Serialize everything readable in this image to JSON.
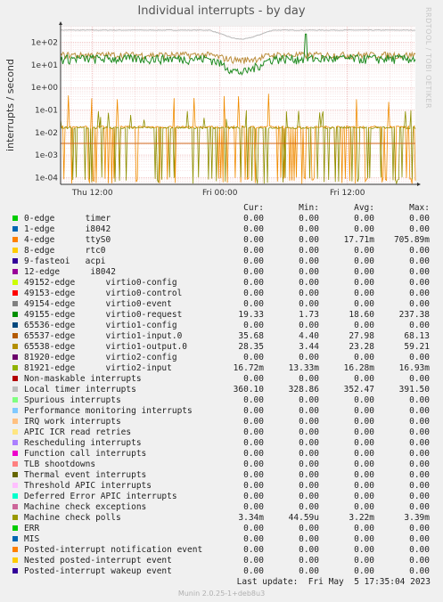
{
  "chart_data": {
    "type": "line",
    "title": "Individual interrupts - by day",
    "ylabel": "interrupts / second",
    "xlabel": "",
    "y_scale": "log",
    "ylim": [
      5e-05,
      500
    ],
    "ytick_labels": [
      "1e+02",
      "1e+01",
      "1e+00",
      "1e-01",
      "1e-02",
      "1e-03",
      "1e-04"
    ],
    "ytick_values": [
      100,
      10,
      1,
      0.1,
      0.01,
      0.001,
      0.0001
    ],
    "xtick_labels": [
      "Thu 12:00",
      "Fri 00:00",
      "Fri 12:00"
    ],
    "xtick_hours": [
      12,
      24,
      36
    ],
    "x_range_hours": [
      9,
      42.4
    ],
    "grid": true,
    "series": [
      {
        "name": "Local timer interrupts",
        "color": "#b8b8b8",
        "baseline": 352,
        "dip": 0.4
      },
      {
        "name": "49155-edge virtio0-request",
        "color": "#228b22",
        "baseline": 19.3,
        "dip": 0.25
      },
      {
        "name": "65537-edge virtio1-input.0",
        "color": "#bc8f3f",
        "baseline": 28,
        "dip": 0.6
      },
      {
        "name": "81921-edge virtio2-input",
        "color": "#8f8f00",
        "baseline": 0.0163,
        "dip": 1
      },
      {
        "name": "4-edge ttyS0",
        "color": "#f08c00",
        "baseline": 0.0177,
        "dip": 1
      },
      {
        "name": "Machine check polls",
        "color": "#d2691e",
        "baseline": 0.0033,
        "dip": 1
      }
    ]
  },
  "watermark": "RRDTOOL / TOBI OETIKER",
  "legend_headers": {
    "cur": "Cur:",
    "min": "Min:",
    "avg": "Avg:",
    "max": "Max:"
  },
  "legend": [
    {
      "label": "0-edge      timer",
      "color": "#00cc00",
      "cur": "0.00",
      "min": "0.00",
      "avg": "0.00",
      "max": "0.00"
    },
    {
      "label": "1-edge      i8042",
      "color": "#0066b3",
      "cur": "0.00",
      "min": "0.00",
      "avg": "0.00",
      "max": "0.00"
    },
    {
      "label": "4-edge      ttyS0",
      "color": "#ff8000",
      "cur": "0.00",
      "min": "0.00",
      "avg": "17.71m",
      "max": "705.89m"
    },
    {
      "label": "8-edge      rtc0",
      "color": "#ffcc00",
      "cur": "0.00",
      "min": "0.00",
      "avg": "0.00",
      "max": "0.00"
    },
    {
      "label": "9-fasteoi   acpi",
      "color": "#330099",
      "cur": "0.00",
      "min": "0.00",
      "avg": "0.00",
      "max": "0.00"
    },
    {
      "label": "12-edge      i8042",
      "color": "#990099",
      "cur": "0.00",
      "min": "0.00",
      "avg": "0.00",
      "max": "0.00"
    },
    {
      "label": "49152-edge      virtio0-config",
      "color": "#ccff00",
      "cur": "0.00",
      "min": "0.00",
      "avg": "0.00",
      "max": "0.00"
    },
    {
      "label": "49153-edge      virtio0-control",
      "color": "#ff0000",
      "cur": "0.00",
      "min": "0.00",
      "avg": "0.00",
      "max": "0.00"
    },
    {
      "label": "49154-edge      virtio0-event",
      "color": "#808080",
      "cur": "0.00",
      "min": "0.00",
      "avg": "0.00",
      "max": "0.00"
    },
    {
      "label": "49155-edge      virtio0-request",
      "color": "#008f00",
      "cur": "19.33",
      "min": "1.73",
      "avg": "18.60",
      "max": "237.38"
    },
    {
      "label": "65536-edge      virtio1-config",
      "color": "#00487d",
      "cur": "0.00",
      "min": "0.00",
      "avg": "0.00",
      "max": "0.00"
    },
    {
      "label": "65537-edge      virtio1-input.0",
      "color": "#b35a00",
      "cur": "35.68",
      "min": "4.40",
      "avg": "27.98",
      "max": "68.13"
    },
    {
      "label": "65538-edge      virtio1-output.0",
      "color": "#b38f00",
      "cur": "28.35",
      "min": "3.44",
      "avg": "23.28",
      "max": "59.21"
    },
    {
      "label": "81920-edge      virtio2-config",
      "color": "#6b006b",
      "cur": "0.00",
      "min": "0.00",
      "avg": "0.00",
      "max": "0.00"
    },
    {
      "label": "81921-edge      virtio2-input",
      "color": "#8fb300",
      "cur": "16.72m",
      "min": "13.33m",
      "avg": "16.28m",
      "max": "16.93m"
    },
    {
      "label": "Non-maskable interrupts",
      "color": "#b30000",
      "cur": "0.00",
      "min": "0.00",
      "avg": "0.00",
      "max": "0.00"
    },
    {
      "label": "Local timer interrupts",
      "color": "#bebebe",
      "cur": "360.10",
      "min": "328.86",
      "avg": "352.47",
      "max": "391.50"
    },
    {
      "label": "Spurious interrupts",
      "color": "#80ff80",
      "cur": "0.00",
      "min": "0.00",
      "avg": "0.00",
      "max": "0.00"
    },
    {
      "label": "Performance monitoring interrupts",
      "color": "#80c9ff",
      "cur": "0.00",
      "min": "0.00",
      "avg": "0.00",
      "max": "0.00"
    },
    {
      "label": "IRQ work interrupts",
      "color": "#ffc080",
      "cur": "0.00",
      "min": "0.00",
      "avg": "0.00",
      "max": "0.00"
    },
    {
      "label": "APIC ICR read retries",
      "color": "#ffe680",
      "cur": "0.00",
      "min": "0.00",
      "avg": "0.00",
      "max": "0.00"
    },
    {
      "label": "Rescheduling interrupts",
      "color": "#aa80ff",
      "cur": "0.00",
      "min": "0.00",
      "avg": "0.00",
      "max": "0.00"
    },
    {
      "label": "Function call interrupts",
      "color": "#ee00cc",
      "cur": "0.00",
      "min": "0.00",
      "avg": "0.00",
      "max": "0.00"
    },
    {
      "label": "TLB shootdowns",
      "color": "#ff8080",
      "cur": "0.00",
      "min": "0.00",
      "avg": "0.00",
      "max": "0.00"
    },
    {
      "label": "Thermal event interrupts",
      "color": "#666600",
      "cur": "0.00",
      "min": "0.00",
      "avg": "0.00",
      "max": "0.00"
    },
    {
      "label": "Threshold APIC interrupts",
      "color": "#ffbfff",
      "cur": "0.00",
      "min": "0.00",
      "avg": "0.00",
      "max": "0.00"
    },
    {
      "label": "Deferred Error APIC interrupts",
      "color": "#00ffcc",
      "cur": "0.00",
      "min": "0.00",
      "avg": "0.00",
      "max": "0.00"
    },
    {
      "label": "Machine check exceptions",
      "color": "#cc6699",
      "cur": "0.00",
      "min": "0.00",
      "avg": "0.00",
      "max": "0.00"
    },
    {
      "label": "Machine check polls",
      "color": "#999900",
      "cur": "3.34m",
      "min": "44.59u",
      "avg": "3.22m",
      "max": "3.39m"
    },
    {
      "label": "ERR",
      "color": "#00cc00",
      "cur": "0.00",
      "min": "0.00",
      "avg": "0.00",
      "max": "0.00"
    },
    {
      "label": "MIS",
      "color": "#0066b3",
      "cur": "0.00",
      "min": "0.00",
      "avg": "0.00",
      "max": "0.00"
    },
    {
      "label": "Posted-interrupt notification event",
      "color": "#ff8000",
      "cur": "0.00",
      "min": "0.00",
      "avg": "0.00",
      "max": "0.00"
    },
    {
      "label": "Nested posted-interrupt event",
      "color": "#ffcc00",
      "cur": "0.00",
      "min": "0.00",
      "avg": "0.00",
      "max": "0.00"
    },
    {
      "label": "Posted-interrupt wakeup event",
      "color": "#330099",
      "cur": "0.00",
      "min": "0.00",
      "avg": "0.00",
      "max": "0.00"
    }
  ],
  "last_update": "Last update:  Fri May  5 17:35:04 2023",
  "footer": "Munin 2.0.25-1+deb8u3"
}
